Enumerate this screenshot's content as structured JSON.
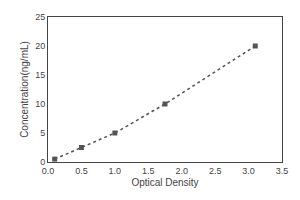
{
  "chart_data": {
    "type": "line",
    "x": [
      0.1,
      0.5,
      1.0,
      1.75,
      3.1
    ],
    "values": [
      0.5,
      2.5,
      5.0,
      10.0,
      20.0
    ],
    "xlabel": "Optical Density",
    "ylabel": "Concentration(ng/mL)",
    "xlim": [
      0,
      3.5
    ],
    "ylim": [
      0,
      25
    ],
    "xticks": [
      {
        "value": 0,
        "label": "0.0"
      },
      0.5,
      {
        "value": 1.0,
        "label": "1.0"
      },
      1.5,
      {
        "value": 2.0,
        "label": "2.0"
      },
      2.5,
      {
        "value": 3.0,
        "label": "3.0"
      },
      3.5
    ],
    "yticks": [
      0,
      5,
      10,
      15,
      20,
      25
    ],
    "grid": false,
    "color": "#555555",
    "marker": "square",
    "line_style": "dotted"
  }
}
